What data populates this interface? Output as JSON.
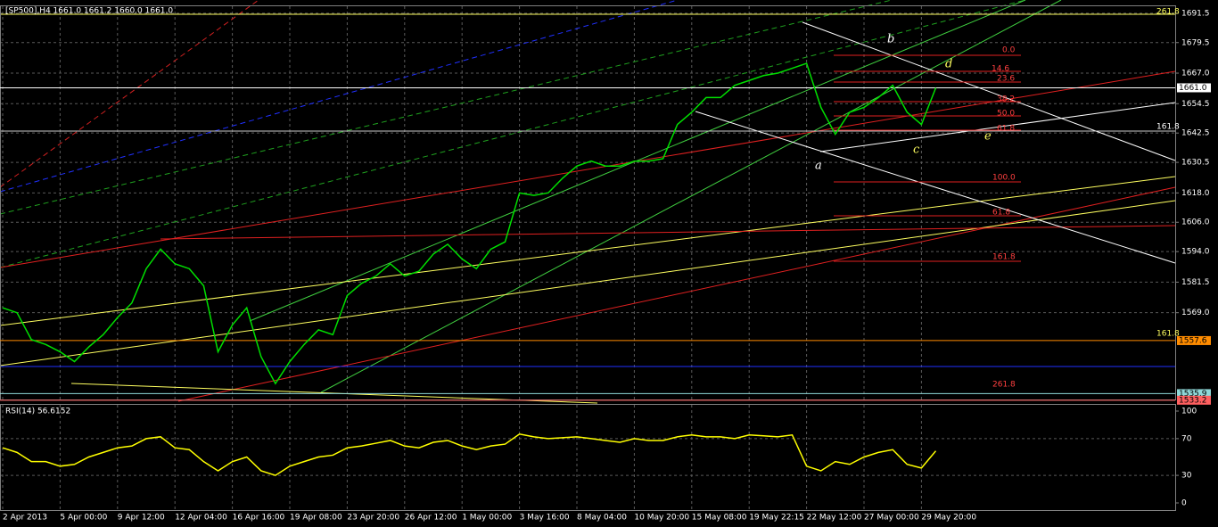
{
  "chart_data": {
    "type": "line",
    "title": "[SP500],H4  1661.0 1661.2 1660.0 1661.0",
    "categories": [
      "2 Apr 2013",
      null,
      null,
      null,
      "5 Apr 00:00",
      null,
      null,
      null,
      "9 Apr 12:00",
      null,
      null,
      null,
      "12 Apr 04:00",
      null,
      null,
      null,
      "16 Apr 16:00",
      null,
      null,
      null,
      "19 Apr 08:00",
      null,
      null,
      null,
      "23 Apr 20:00",
      null,
      null,
      null,
      "26 Apr 12:00",
      null,
      null,
      null,
      "1 May 00:00",
      null,
      null,
      null,
      "3 May 16:00",
      null,
      null,
      null,
      "8 May 04:00",
      null,
      null,
      null,
      "10 May 20:00",
      null,
      null,
      null,
      "15 May 08:00",
      null,
      null,
      null,
      "19 May 22:15",
      null,
      null,
      null,
      "22 May 12:00",
      null,
      null,
      null,
      "27 May 00:00",
      null,
      null,
      null,
      "29 May 20:00",
      null
    ],
    "series": [
      {
        "name": "SP500",
        "color": "#00e000",
        "values": [
          1571,
          1569,
          1558,
          1556,
          1553,
          1549,
          1555,
          1560,
          1567,
          1573,
          1587,
          1595,
          1589,
          1587,
          1580,
          1553,
          1564,
          1571,
          1551,
          1540,
          1549,
          1556,
          1562,
          1560,
          1576,
          1581,
          1584,
          1589,
          1584,
          1586,
          1593,
          1597,
          1591,
          1587,
          1595,
          1598,
          1618,
          1617,
          1618,
          1624,
          1629,
          1631,
          1629,
          1629,
          1631,
          1631,
          1632,
          1646,
          1651,
          1657,
          1657,
          1662,
          1664,
          1666,
          1667,
          1669,
          1671,
          1653,
          1642,
          1651,
          1653,
          1657,
          1662,
          1651,
          1646,
          1661
        ]
      }
    ],
    "ylim": [
      1533.5,
      1694
    ],
    "yticks": [
      1691.5,
      1679.5,
      {
        "value": 1667,
        "label": "1667.0"
      },
      1654.5,
      1642.5,
      1630.5,
      {
        "value": 1618,
        "label": "1618.0"
      },
      {
        "value": 1606,
        "label": "1606.0"
      },
      {
        "value": 1594,
        "label": "1594.0"
      },
      1581.5,
      {
        "value": 1569,
        "label": "1569.0"
      }
    ],
    "price_labels": [
      {
        "value": 1661,
        "label": "1661.0",
        "color": "#ffffff"
      },
      {
        "value": 1557.6,
        "label": "1557.6",
        "color": "#ff8c00"
      },
      {
        "value": 1535.9,
        "label": "1535.9",
        "color": "#8fd8d8"
      },
      {
        "value": 1533.2,
        "label": "1533.2",
        "color": "#ff6060"
      }
    ],
    "annotations": [
      "261.8",
      "0.0",
      "14.6",
      "23.6",
      "38.2",
      "50.0",
      "61.8",
      "161.8",
      "100.0",
      "61.8",
      "161.8",
      "161.8",
      "261.8",
      "a",
      "b",
      "c",
      "d",
      "e"
    ],
    "grid": true,
    "rsi": {
      "title": "RSI(14) 56.6152",
      "color": "#ffff00",
      "values": [
        60,
        55,
        45,
        45,
        40,
        42,
        50,
        55,
        60,
        62,
        70,
        72,
        60,
        58,
        45,
        35,
        45,
        50,
        35,
        30,
        40,
        45,
        50,
        52,
        60,
        62,
        65,
        68,
        62,
        60,
        66,
        68,
        62,
        58,
        62,
        64,
        75,
        72,
        70,
        71,
        72,
        70,
        68,
        66,
        70,
        68,
        68,
        72,
        74,
        72,
        72,
        70,
        74,
        73,
        72,
        74,
        40,
        35,
        45,
        42,
        50,
        55,
        58,
        42,
        38,
        56.6
      ],
      "ylim": [
        0,
        100
      ],
      "yticks": [
        100,
        70,
        30,
        0
      ]
    }
  }
}
